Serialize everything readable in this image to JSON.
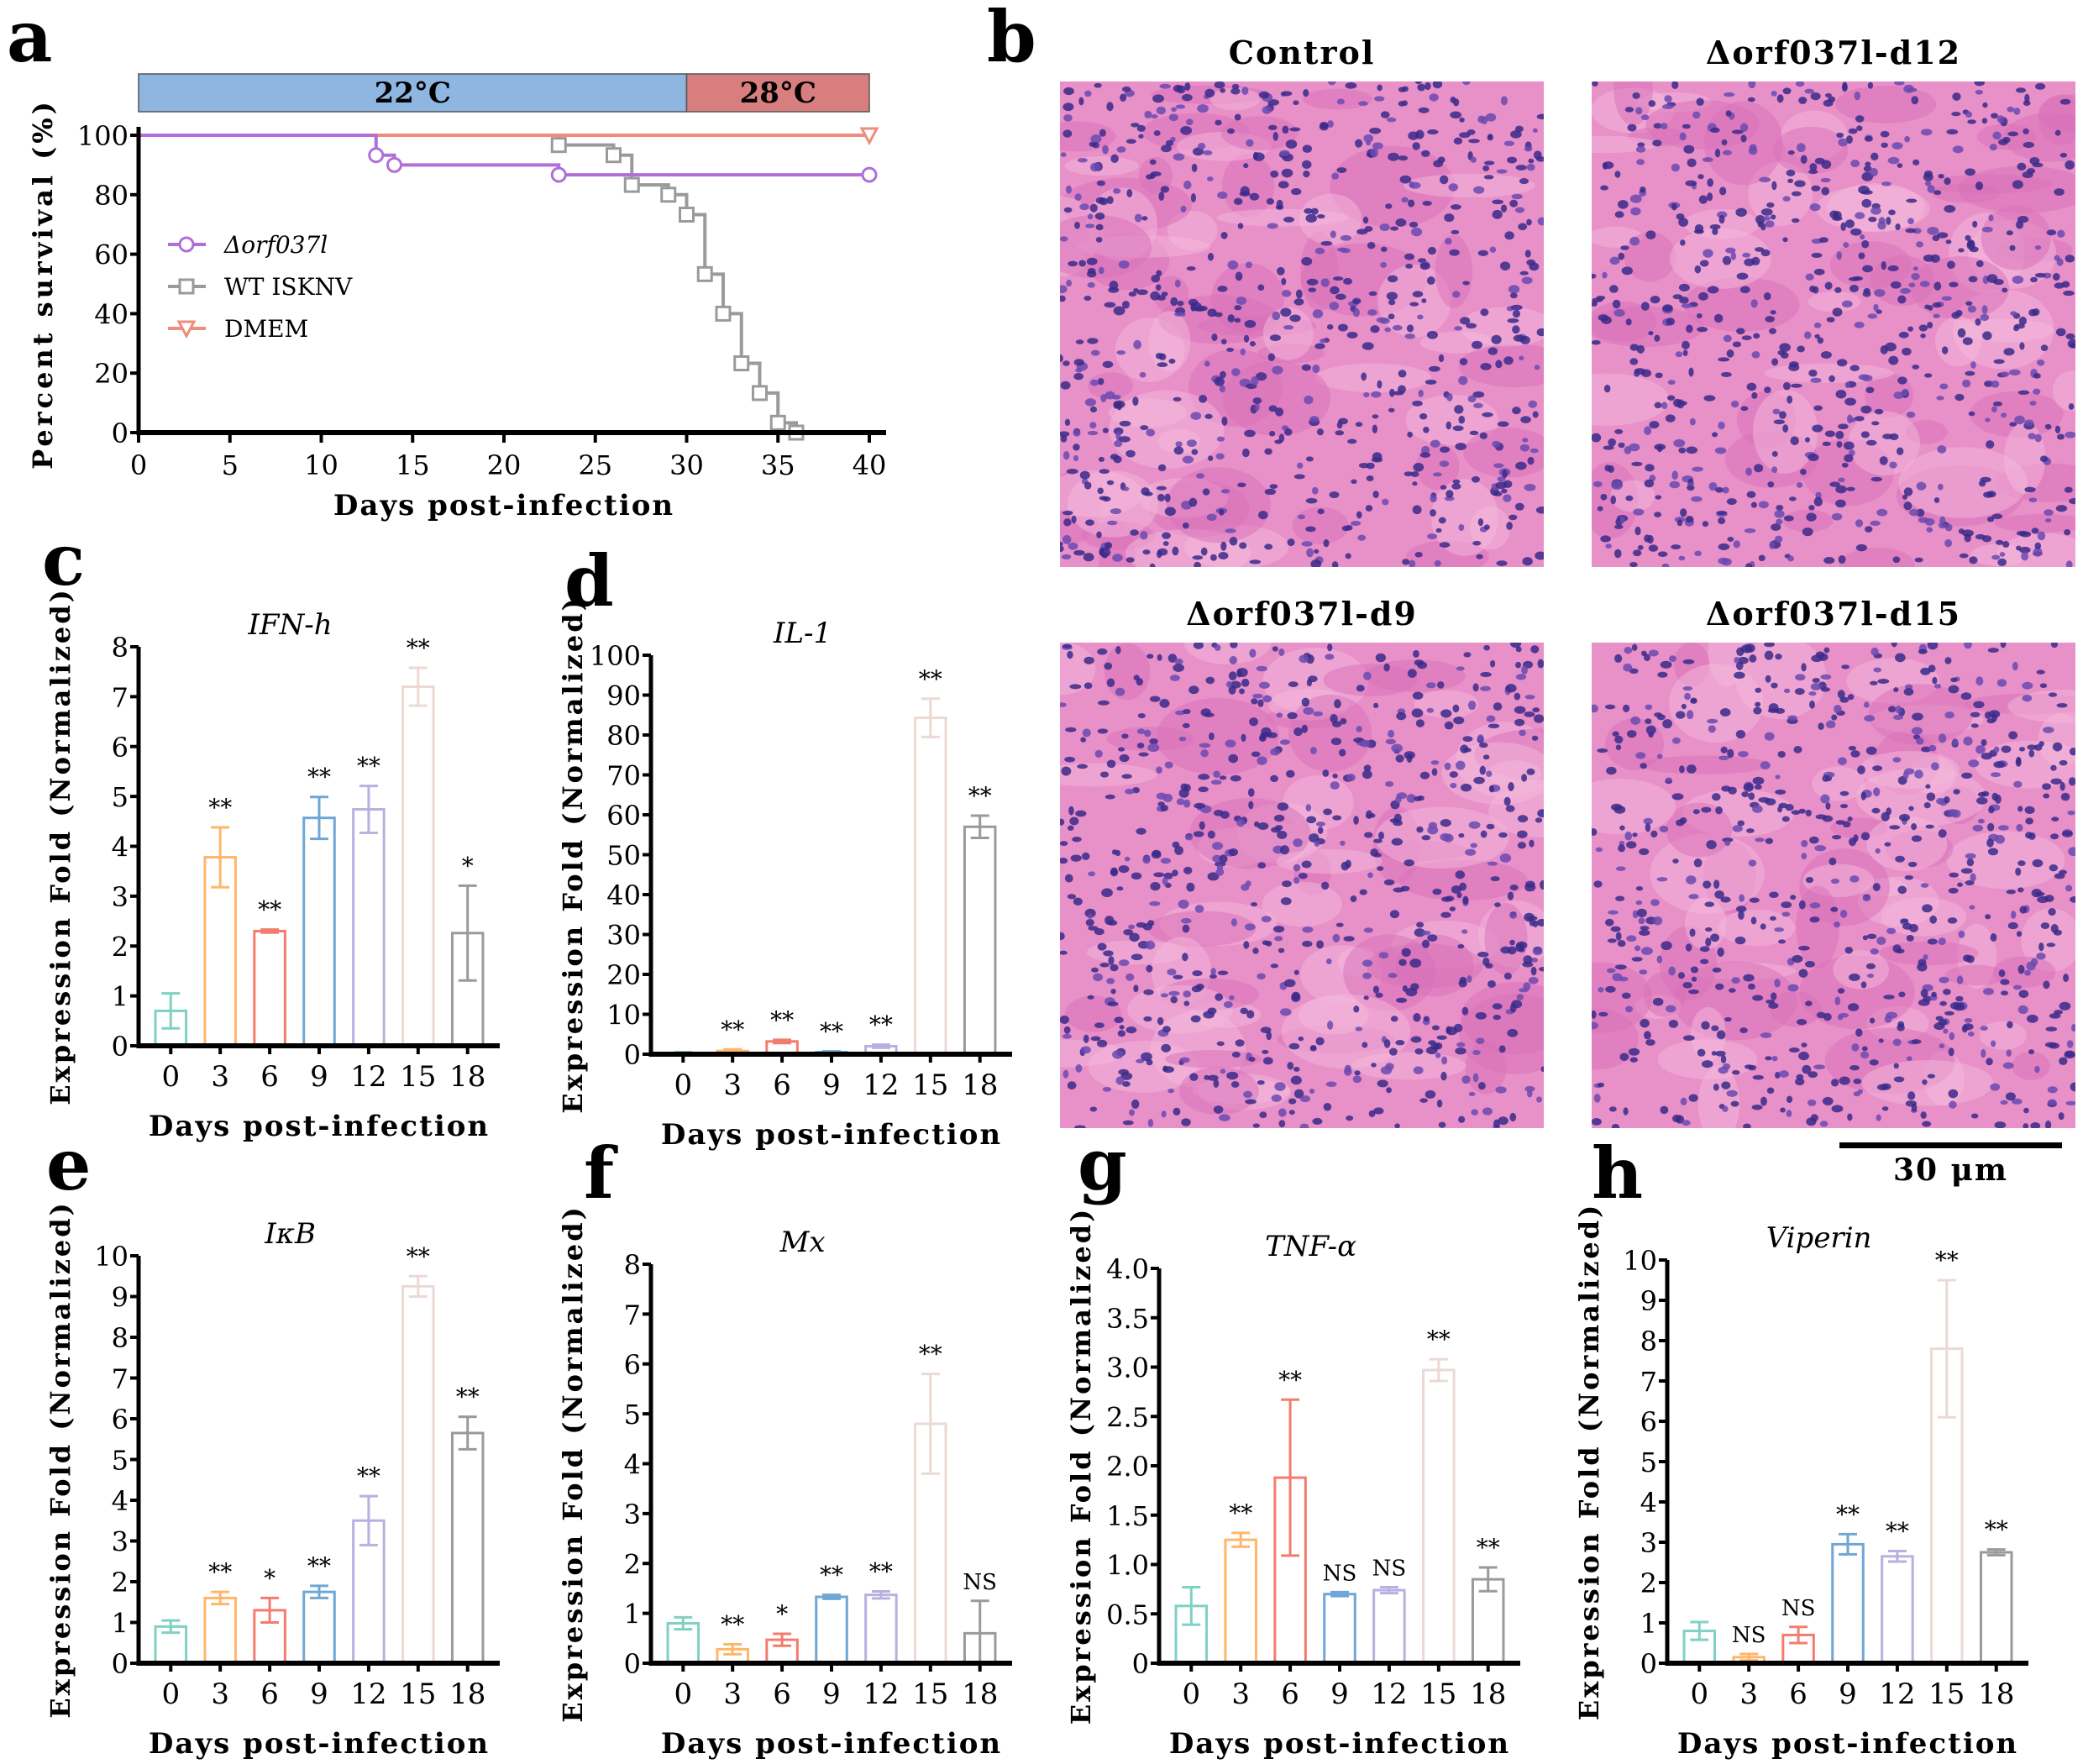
{
  "panel_labels": {
    "a": "a",
    "b": "b",
    "c": "c",
    "d": "d",
    "e": "e",
    "f": "f",
    "g": "g",
    "h": "h"
  },
  "histology": {
    "titles": [
      "Control",
      "Δorf037l-d12",
      "Δorf037l-d9",
      "Δorf037l-d15"
    ],
    "scale_bar": "30 μm"
  },
  "chart_data": [
    {
      "id": "a",
      "type": "line",
      "title": "",
      "temperature_bands": [
        {
          "label": "22°C",
          "from": 0,
          "to": 30,
          "color": "#8fb6e0"
        },
        {
          "label": "28°C",
          "from": 30,
          "to": 40,
          "color": "#d87e7e"
        }
      ],
      "xlabel": "Days post-infection",
      "ylabel": "Percent survival (%)",
      "xlim": [
        0,
        40
      ],
      "ylim": [
        0,
        100
      ],
      "xticks": [
        0,
        5,
        10,
        15,
        20,
        25,
        30,
        35,
        40
      ],
      "yticks": [
        0,
        20,
        40,
        60,
        80,
        100
      ],
      "legend_position": "center-left",
      "series": [
        {
          "name": "Δorf037l",
          "color": "#b06fd8",
          "marker": "circle",
          "x": [
            0,
            13,
            14,
            23,
            40
          ],
          "y": [
            100,
            93.3,
            90,
            86.7,
            86.7
          ],
          "marker_x": [
            13,
            14,
            23,
            40
          ]
        },
        {
          "name": "WT ISKNV",
          "color": "#9a9a9a",
          "marker": "square",
          "x": [
            0,
            23,
            26,
            27,
            29,
            30,
            31,
            32,
            33,
            34,
            35,
            36
          ],
          "y": [
            100,
            96.7,
            93.3,
            83.3,
            80,
            73.3,
            53.3,
            40,
            23.3,
            13.3,
            3.3,
            0
          ],
          "marker_x": [
            23,
            26,
            27,
            29,
            30,
            31,
            32,
            33,
            34,
            35,
            36
          ]
        },
        {
          "name": "DMEM",
          "color": "#f08c7c",
          "marker": "triangle-down",
          "x": [
            0,
            40
          ],
          "y": [
            100,
            100
          ],
          "marker_x": [
            40
          ]
        }
      ]
    },
    {
      "id": "c",
      "type": "bar",
      "title": "IFN-h",
      "xlabel": "Days post-infection",
      "ylabel": "Expression Fold (Normalized)",
      "categories": [
        "0",
        "3",
        "6",
        "9",
        "12",
        "15",
        "18"
      ],
      "values": [
        0.7,
        3.78,
        2.3,
        4.57,
        4.74,
        7.2,
        2.26
      ],
      "errors": [
        0.35,
        0.6,
        0.03,
        0.42,
        0.47,
        0.38,
        0.95
      ],
      "significance": [
        "",
        "**",
        "**",
        "**",
        "**",
        "**",
        "*"
      ],
      "ylim": [
        0,
        8
      ],
      "yticks": [
        "0",
        "1",
        "2",
        "3",
        "4",
        "5",
        "6",
        "7",
        "8"
      ]
    },
    {
      "id": "d",
      "type": "bar",
      "title": "IL-1",
      "xlabel": "Days post-infection",
      "ylabel": "Expression Fold (Normalized)",
      "categories": [
        "0",
        "3",
        "6",
        "9",
        "12",
        "15",
        "18"
      ],
      "values": [
        0.3,
        0.8,
        3.2,
        0.5,
        2.0,
        84.3,
        57.0
      ],
      "errors": [
        0.2,
        0.4,
        0.4,
        0.2,
        0.4,
        4.8,
        2.8
      ],
      "significance": [
        "",
        "**",
        "**",
        "**",
        "**",
        "**",
        "**"
      ],
      "ylim": [
        0,
        100
      ],
      "yticks": [
        "0",
        "10",
        "20",
        "30",
        "40",
        "50",
        "60",
        "70",
        "80",
        "90",
        "100"
      ]
    },
    {
      "id": "e",
      "type": "bar",
      "title": "IκB",
      "xlabel": "Days post-infection",
      "ylabel": "Expression Fold (Normalized)",
      "categories": [
        "0",
        "3",
        "6",
        "9",
        "12",
        "15",
        "18"
      ],
      "values": [
        0.9,
        1.6,
        1.3,
        1.75,
        3.5,
        9.25,
        5.65
      ],
      "errors": [
        0.15,
        0.15,
        0.3,
        0.15,
        0.6,
        0.25,
        0.4
      ],
      "significance": [
        "",
        "**",
        "*",
        "**",
        "**",
        "**",
        "**"
      ],
      "ylim": [
        0,
        10
      ],
      "yticks": [
        "0",
        "1",
        "2",
        "3",
        "4",
        "5",
        "6",
        "7",
        "8",
        "9",
        "10"
      ]
    },
    {
      "id": "f",
      "type": "bar",
      "title": "Mx",
      "xlabel": "Days post-infection",
      "ylabel": "Expression Fold (Normalized)",
      "categories": [
        "0",
        "3",
        "6",
        "9",
        "12",
        "15",
        "18"
      ],
      "values": [
        0.8,
        0.28,
        0.47,
        1.33,
        1.37,
        4.8,
        0.6
      ],
      "errors": [
        0.12,
        0.1,
        0.12,
        0.04,
        0.07,
        1.0,
        0.65
      ],
      "significance": [
        "",
        "**",
        "*",
        "**",
        "**",
        "**",
        "NS"
      ],
      "ylim": [
        0,
        8
      ],
      "yticks": [
        "0",
        "1",
        "2",
        "3",
        "4",
        "5",
        "6",
        "7",
        "8"
      ]
    },
    {
      "id": "g",
      "type": "bar",
      "title": "TNF-α",
      "xlabel": "Days post-infection",
      "ylabel": "Expression Fold (Normalized)",
      "categories": [
        "0",
        "3",
        "6",
        "9",
        "12",
        "15",
        "18"
      ],
      "values": [
        0.58,
        1.25,
        1.88,
        0.7,
        0.74,
        2.97,
        0.85
      ],
      "errors": [
        0.19,
        0.07,
        0.79,
        0.02,
        0.03,
        0.11,
        0.12
      ],
      "significance": [
        "",
        "**",
        "**",
        "NS",
        "NS",
        "**",
        "**"
      ],
      "ylim": [
        0,
        4
      ],
      "yticks": [
        "0",
        "0.5",
        "1.0",
        "1.5",
        "2.0",
        "2.5",
        "3.0",
        "3.5",
        "4.0"
      ]
    },
    {
      "id": "h",
      "type": "bar",
      "title": "Viperin",
      "xlabel": "Days post-infection",
      "ylabel": "Expression Fold (Normalized)",
      "categories": [
        "0",
        "3",
        "6",
        "9",
        "12",
        "15",
        "18"
      ],
      "values": [
        0.8,
        0.15,
        0.7,
        2.95,
        2.65,
        7.8,
        2.75
      ],
      "errors": [
        0.22,
        0.08,
        0.2,
        0.25,
        0.13,
        1.7,
        0.07
      ],
      "significance": [
        "",
        "NS",
        "NS",
        "**",
        "**",
        "**",
        "**"
      ],
      "ylim": [
        0,
        10
      ],
      "yticks": [
        "0",
        "1",
        "2",
        "3",
        "4",
        "5",
        "6",
        "7",
        "8",
        "9",
        "10"
      ]
    }
  ],
  "bar_colors": [
    "#7fd1c4",
    "#ffb66b",
    "#f47c6e",
    "#6ea6d6",
    "#b7b0e0",
    "#ecd9d4",
    "#9a9a9a"
  ]
}
